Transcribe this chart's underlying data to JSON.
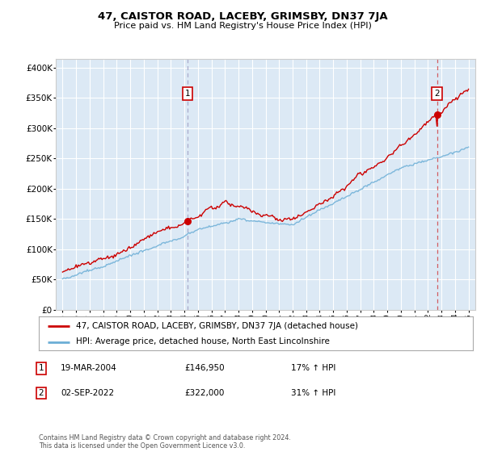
{
  "title": "47, CAISTOR ROAD, LACEBY, GRIMSBY, DN37 7JA",
  "subtitle": "Price paid vs. HM Land Registry's House Price Index (HPI)",
  "ytick_values": [
    0,
    50000,
    100000,
    150000,
    200000,
    250000,
    300000,
    350000,
    400000
  ],
  "ylim": [
    0,
    415000
  ],
  "xlim_start": 1994.5,
  "xlim_end": 2025.5,
  "plot_bg_color": "#dce9f5",
  "grid_color": "#ffffff",
  "sale1": {
    "date_year": 2004.22,
    "price": 146950,
    "label": "1"
  },
  "sale2": {
    "date_year": 2022.67,
    "price": 322000,
    "label": "2"
  },
  "legend_entries": [
    {
      "label": "47, CAISTOR ROAD, LACEBY, GRIMSBY, DN37 7JA (detached house)",
      "color": "#cc0000"
    },
    {
      "label": "HPI: Average price, detached house, North East Lincolnshire",
      "color": "#6baed6"
    }
  ],
  "table_rows": [
    {
      "num": "1",
      "date": "19-MAR-2004",
      "price": "£146,950",
      "hpi": "17% ↑ HPI"
    },
    {
      "num": "2",
      "date": "02-SEP-2022",
      "price": "£322,000",
      "hpi": "31% ↑ HPI"
    }
  ],
  "footer": "Contains HM Land Registry data © Crown copyright and database right 2024.\nThis data is licensed under the Open Government Licence v3.0.",
  "red_line_color": "#cc0000",
  "blue_line_color": "#6baed6",
  "vline_color": "#bbbbcc",
  "vline2_color": "#cc0000"
}
